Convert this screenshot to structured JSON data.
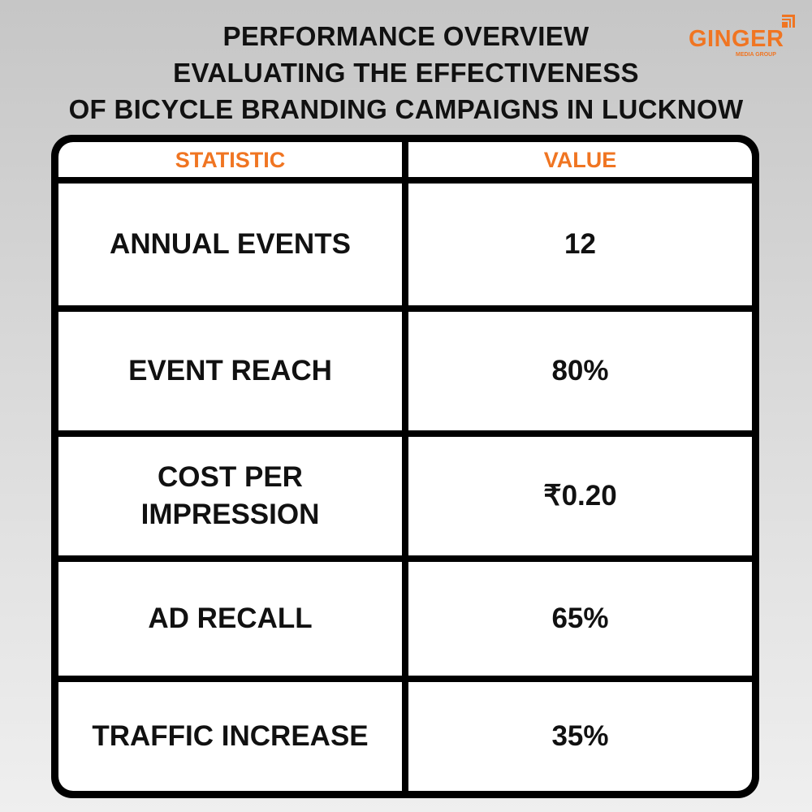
{
  "title": {
    "line1": "PERFORMANCE OVERVIEW",
    "line2": "EVALUATING THE EFFECTIVENESS",
    "line3": "OF BICYCLE BRANDING CAMPAIGNS IN LUCKNOW"
  },
  "logo": {
    "name": "GINGER",
    "tagline": "MEDIA GROUP",
    "color": "#f07522"
  },
  "table": {
    "headers": [
      "STATISTIC",
      "VALUE"
    ],
    "rows": [
      {
        "statistic": "ANNUAL EVENTS",
        "value": "12"
      },
      {
        "statistic": "EVENT REACH",
        "value": "80%"
      },
      {
        "statistic": "COST PER IMPRESSION",
        "value": "₹0.20"
      },
      {
        "statistic": "AD RECALL",
        "value": "65%"
      },
      {
        "statistic": "TRAFFIC INCREASE",
        "value": "35%"
      }
    ]
  },
  "colors": {
    "accent": "#f07522",
    "border": "#000000"
  }
}
